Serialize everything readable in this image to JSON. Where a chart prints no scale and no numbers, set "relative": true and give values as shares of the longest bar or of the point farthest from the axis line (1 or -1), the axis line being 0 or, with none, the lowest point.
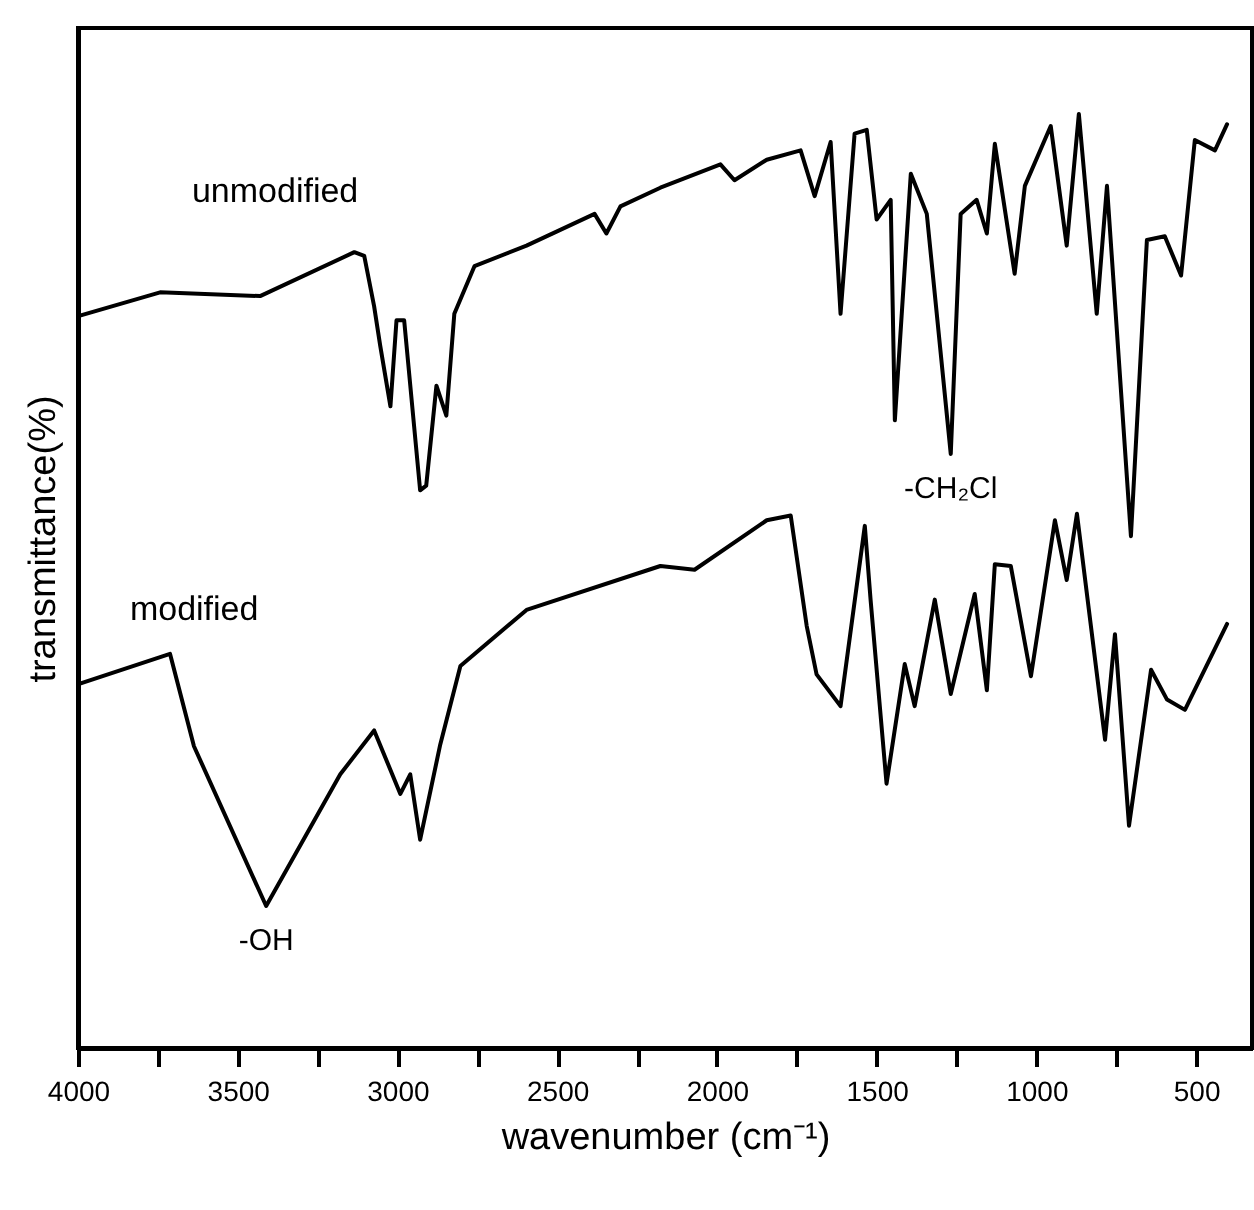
{
  "chart_data": {
    "type": "line",
    "relative": true,
    "xlabel": "wavenumber (cm⁻¹)",
    "ylabel": "transmittance(%)",
    "xlim": [
      4000,
      325
    ],
    "xticks": [
      4000,
      {
        "value": 3750,
        "label": null
      },
      3500,
      {
        "value": 3250,
        "label": null
      },
      3000,
      {
        "value": 2750,
        "label": null
      },
      2500,
      {
        "value": 2250,
        "label": null
      },
      2000,
      {
        "value": 1750,
        "label": null
      },
      1500,
      {
        "value": 1250,
        "label": null
      },
      1000,
      {
        "value": 750,
        "label": null
      },
      500
    ],
    "grid": false,
    "marker": "none",
    "line_style": "solid",
    "series": [
      {
        "name": "unmodified",
        "color": "#000000",
        "x": [
          3994,
          3743,
          3430,
          3135,
          3104,
          3073,
          3054,
          3022,
          3003,
          2979,
          2929,
          2910,
          2878,
          2847,
          2822,
          2759,
          2596,
          2383,
          2346,
          2302,
          2177,
          1989,
          1945,
          1844,
          1738,
          1694,
          1644,
          1613,
          1569,
          1531,
          1500,
          1456,
          1443,
          1393,
          1343,
          1268,
          1237,
          1187,
          1155,
          1130,
          1068,
          1036,
          955,
          905,
          867,
          811,
          779,
          704,
          654,
          598,
          547,
          504,
          441,
          403
        ],
        "values": [
          0.784,
          0.809,
          0.805,
          0.852,
          0.848,
          0.794,
          0.752,
          0.687,
          0.779,
          0.779,
          0.597,
          0.602,
          0.709,
          0.677,
          0.786,
          0.837,
          0.859,
          0.893,
          0.872,
          0.901,
          0.921,
          0.946,
          0.929,
          0.951,
          0.961,
          0.912,
          0.97,
          0.786,
          0.979,
          0.983,
          0.887,
          0.908,
          0.672,
          0.936,
          0.893,
          0.636,
          0.893,
          0.908,
          0.872,
          0.968,
          0.829,
          0.923,
          0.987,
          0.859,
          1,
          0.786,
          0.923,
          0.548,
          0.865,
          0.869,
          0.827,
          0.972,
          0.961,
          0.989
        ]
      },
      {
        "name": "modified",
        "color": "#000000",
        "x": [
          3994,
          3712,
          3637,
          3411,
          3179,
          3073,
          2991,
          2960,
          2929,
          2866,
          2803,
          2596,
          2177,
          2070,
          1844,
          1769,
          1719,
          1688,
          1613,
          1537,
          1519,
          1469,
          1412,
          1381,
          1318,
          1268,
          1193,
          1155,
          1130,
          1080,
          1017,
          942,
          905,
          873,
          785,
          754,
          710,
          641,
          591,
          535,
          403
        ],
        "values": [
          0.39,
          0.422,
          0.323,
          0.152,
          0.293,
          0.34,
          0.272,
          0.293,
          0.223,
          0.325,
          0.409,
          0.469,
          0.516,
          0.512,
          0.565,
          0.57,
          0.452,
          0.4,
          0.366,
          0.559,
          0.48,
          0.283,
          0.411,
          0.366,
          0.48,
          0.379,
          0.486,
          0.383,
          0.518,
          0.516,
          0.398,
          0.565,
          0.501,
          0.572,
          0.33,
          0.443,
          0.238,
          0.405,
          0.373,
          0.362,
          0.454
        ]
      }
    ],
    "annotations": [
      {
        "text": "-CH₂Cl",
        "x": 1268,
        "y": 0.636
      },
      {
        "text": "-OH",
        "x": 3411,
        "y": 0.152
      }
    ]
  }
}
